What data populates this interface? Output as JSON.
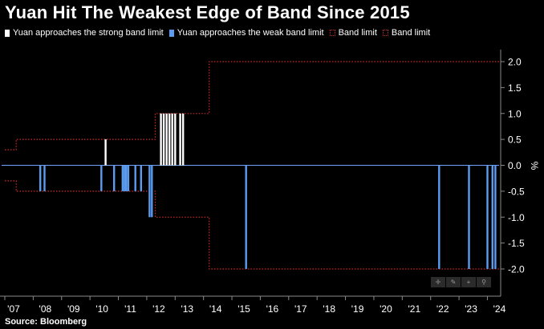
{
  "title": "Yuan Hit The Weakest Edge of Band Since 2015",
  "source": "Source: Bloomberg",
  "colors": {
    "strong": "#ffffff",
    "weak": "#5b9bf0",
    "band": "#d02a2a",
    "zero_line": "#6fa3ff",
    "background": "#000000",
    "axis": "#8a8a8a"
  },
  "legend": [
    {
      "label": "Yuan approaches the strong band limit",
      "style": "solid",
      "color": "#ffffff"
    },
    {
      "label": "Yuan approaches the weak band limit",
      "style": "solid",
      "color": "#5b9bf0"
    },
    {
      "label": "Band limit",
      "style": "dotted",
      "color": "#d02a2a"
    },
    {
      "label": "Band limit",
      "style": "dotted",
      "color": "#d02a2a"
    }
  ],
  "controls": [
    {
      "name": "pan-icon",
      "glyph": "✛"
    },
    {
      "name": "draw-icon",
      "glyph": "✎"
    },
    {
      "name": "zoom-in-icon",
      "glyph": "+"
    },
    {
      "name": "search-icon",
      "glyph": "⚲"
    }
  ],
  "chart_data": {
    "type": "bar",
    "title": "Yuan Hit The Weakest Edge of Band Since 2015",
    "ylabel": "%",
    "y_axis_side": "right",
    "ylim": [
      -2.2,
      2.2
    ],
    "xlim": [
      2007.0,
      2024.6
    ],
    "y_ticks": [
      2.0,
      1.5,
      1.0,
      0.5,
      0.0,
      -0.5,
      -1.0,
      -1.5,
      -2.0
    ],
    "y_tick_labels": [
      "2.0",
      "1.5",
      "1.0",
      "0.5",
      "0.0",
      "-0.5",
      "-1.0",
      "-1.5",
      "-2.0"
    ],
    "x_ticks": [
      2007,
      2008,
      2009,
      2010,
      2011,
      2012,
      2013,
      2014,
      2015,
      2016,
      2017,
      2018,
      2019,
      2020,
      2021,
      2022,
      2023,
      2024
    ],
    "x_tick_labels": [
      "'07",
      "'08",
      "'09",
      "'10",
      "'11",
      "'12",
      "'13",
      "'14",
      "'15",
      "'16",
      "'17",
      "'18",
      "'19",
      "'20",
      "'21",
      "'22",
      "'23",
      "'24"
    ],
    "grid": false,
    "legend_position": "top",
    "band_limit": {
      "x": [
        2007.0,
        2007.4,
        2007.4,
        2012.3,
        2012.3,
        2014.2,
        2014.2,
        2024.6
      ],
      "upper": [
        0.3,
        0.3,
        0.5,
        0.5,
        1.0,
        1.0,
        2.0,
        2.0
      ],
      "lower": [
        -0.3,
        -0.3,
        -0.5,
        -0.5,
        -1.0,
        -1.0,
        -2.0,
        -2.0
      ]
    },
    "series": [
      {
        "name": "Yuan approaches the strong band limit",
        "color": "#ffffff",
        "bars": [
          {
            "x": 2010.55,
            "value": 0.5
          },
          {
            "x": 2012.5,
            "value": 1.0
          },
          {
            "x": 2012.6,
            "value": 1.0
          },
          {
            "x": 2012.7,
            "value": 1.0
          },
          {
            "x": 2012.8,
            "value": 1.0
          },
          {
            "x": 2012.9,
            "value": 1.0
          },
          {
            "x": 2013.0,
            "value": 1.0
          },
          {
            "x": 2013.18,
            "value": 1.0
          },
          {
            "x": 2013.28,
            "value": 1.0
          }
        ]
      },
      {
        "name": "Yuan approaches the weak band limit",
        "color": "#5b9bf0",
        "bars": [
          {
            "x": 2008.25,
            "value": -0.5
          },
          {
            "x": 2008.4,
            "value": -0.5
          },
          {
            "x": 2010.4,
            "value": -0.5
          },
          {
            "x": 2010.85,
            "value": -0.5
          },
          {
            "x": 2011.15,
            "value": -0.5
          },
          {
            "x": 2011.22,
            "value": -0.5
          },
          {
            "x": 2011.28,
            "value": -0.5
          },
          {
            "x": 2011.35,
            "value": -0.5
          },
          {
            "x": 2011.6,
            "value": -0.5
          },
          {
            "x": 2011.8,
            "value": -0.5
          },
          {
            "x": 2012.1,
            "value": -1.0
          },
          {
            "x": 2012.18,
            "value": -1.0
          },
          {
            "x": 2015.5,
            "value": -2.0
          },
          {
            "x": 2022.3,
            "value": -2.0
          },
          {
            "x": 2023.35,
            "value": -2.0
          },
          {
            "x": 2024.0,
            "value": -2.0
          },
          {
            "x": 2024.18,
            "value": -2.0
          },
          {
            "x": 2024.28,
            "value": -2.0
          }
        ]
      }
    ]
  }
}
